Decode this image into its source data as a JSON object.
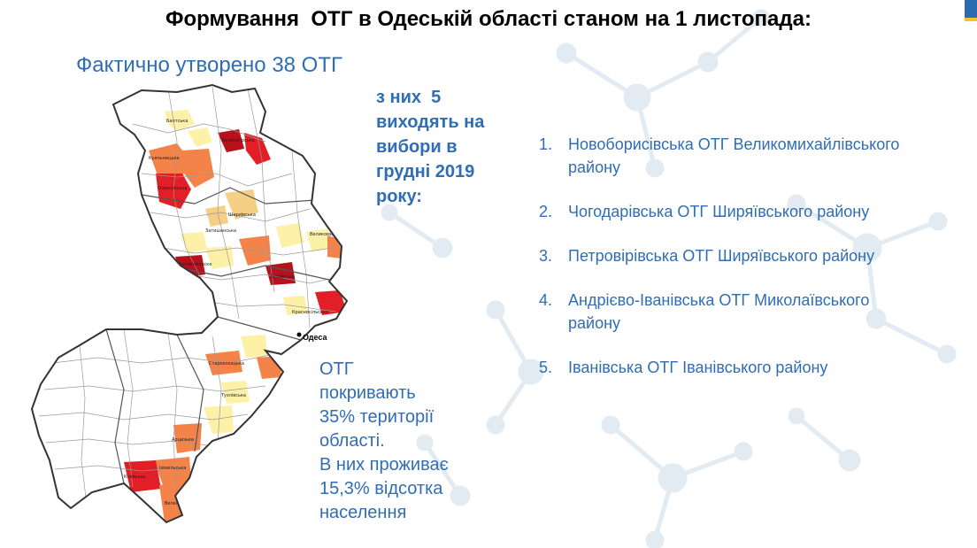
{
  "header": {
    "title": "Формування  ОТГ в Одеській області станом на 1 листопада:",
    "subtitle": "Фактично утворено 38 ОТГ"
  },
  "note": {
    "text": "з них  5\nвиходять на\nвибори в\nгрудні 2019\nроку:"
  },
  "election_list": [
    {
      "number": "1.",
      "lines": [
        "Новоборисівська ОТГ Великомихайлівського",
        "району"
      ]
    },
    {
      "number": "2.",
      "lines": [
        "Чогодарівська ОТГ  Ширяївського району"
      ]
    },
    {
      "number": "3.",
      "lines": [
        "Петровірівська ОТГ Ширяївського району"
      ]
    },
    {
      "number": "4.",
      "lines": [
        "Андрієво-Іванівська ОТГ Миколаївського",
        "району"
      ]
    },
    {
      "number": "5.",
      "lines": [
        "Іванівська ОТГ  Іванівського району"
      ]
    }
  ],
  "stats": {
    "lines": [
      "ОТГ",
      "покривають",
      "35% території",
      "області.",
      "В них проживає",
      "15,3% відсотка",
      "населення"
    ]
  },
  "map": {
    "city_label": "Одеса",
    "colors": {
      "outline": "#333333",
      "district_line": "#9a9a9a",
      "base": "#ffffff",
      "yellow": "#fdf1a8",
      "tan": "#f6cf86",
      "orange": "#f4834a",
      "red": "#e21e26",
      "dark_red": "#b5121b"
    }
  }
}
